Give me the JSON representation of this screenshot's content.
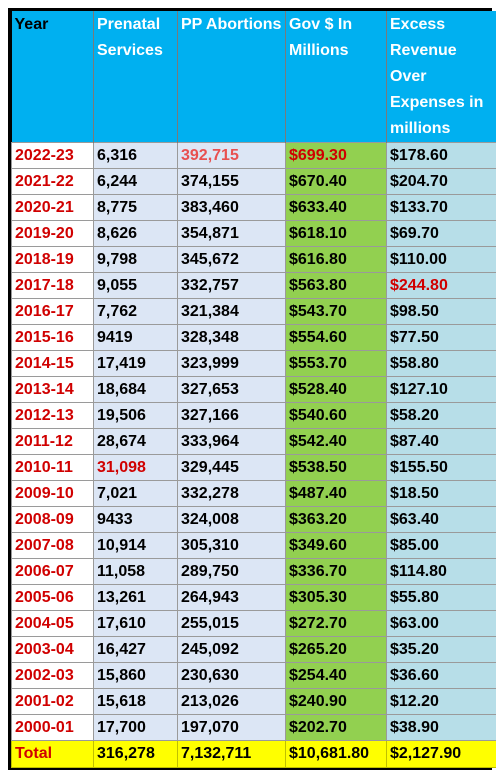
{
  "headers": {
    "year": "Year",
    "prenatal": "Prenatal Services",
    "abortions": "PP Abortions",
    "gov": "Gov $ In Millions",
    "excess": "Excess Revenue Over Expenses in millions"
  },
  "rows": [
    {
      "year": "2022-23",
      "prenatal": "6,316",
      "abortions": "392,715",
      "gov": "$699.30",
      "excess": "$178.60"
    },
    {
      "year": "2021-22",
      "prenatal": "6,244",
      "abortions": "374,155",
      "gov": "$670.40",
      "excess": "$204.70"
    },
    {
      "year": "2020-21",
      "prenatal": "8,775",
      "abortions": "383,460",
      "gov": "$633.40",
      "excess": "$133.70"
    },
    {
      "year": "2019-20",
      "prenatal": "8,626",
      "abortions": "354,871",
      "gov": "$618.10",
      "excess": "$69.70"
    },
    {
      "year": "2018-19",
      "prenatal": "9,798",
      "abortions": "345,672",
      "gov": "$616.80",
      "excess": "$110.00"
    },
    {
      "year": "2017-18",
      "prenatal": "9,055",
      "abortions": "332,757",
      "gov": "$563.80",
      "excess": "$244.80"
    },
    {
      "year": "2016-17",
      "prenatal": "7,762",
      "abortions": "321,384",
      "gov": "$543.70",
      "excess": "$98.50"
    },
    {
      "year": "2015-16",
      "prenatal": "9419",
      "abortions": "328,348",
      "gov": "$554.60",
      "excess": "$77.50"
    },
    {
      "year": "2014-15",
      "prenatal": "17,419",
      "abortions": "323,999",
      "gov": "$553.70",
      "excess": "$58.80"
    },
    {
      "year": "2013-14",
      "prenatal": "18,684",
      "abortions": "327,653",
      "gov": "$528.40",
      "excess": "$127.10"
    },
    {
      "year": "2012-13",
      "prenatal": "19,506",
      "abortions": "327,166",
      "gov": "$540.60",
      "excess": "$58.20"
    },
    {
      "year": "2011-12",
      "prenatal": "28,674",
      "abortions": "333,964",
      "gov": "$542.40",
      "excess": "$87.40"
    },
    {
      "year": "2010-11",
      "prenatal": "31,098",
      "abortions": "329,445",
      "gov": "$538.50",
      "excess": "$155.50"
    },
    {
      "year": "2009-10",
      "prenatal": "7,021",
      "abortions": "332,278",
      "gov": "$487.40",
      "excess": "$18.50"
    },
    {
      "year": "2008-09",
      "prenatal": "9433",
      "abortions": "324,008",
      "gov": "$363.20",
      "excess": "$63.40"
    },
    {
      "year": "2007-08",
      "prenatal": "10,914",
      "abortions": "305,310",
      "gov": "$349.60",
      "excess": "$85.00"
    },
    {
      "year": "2006-07",
      "prenatal": "11,058",
      "abortions": "289,750",
      "gov": "$336.70",
      "excess": "$114.80"
    },
    {
      "year": "2005-06",
      "prenatal": "13,261",
      "abortions": "264,943",
      "gov": "$305.30",
      "excess": "$55.80"
    },
    {
      "year": "2004-05",
      "prenatal": "17,610",
      "abortions": "255,015",
      "gov": "$272.70",
      "excess": "$63.00"
    },
    {
      "year": "2003-04",
      "prenatal": "16,427",
      "abortions": "245,092",
      "gov": "$265.20",
      "excess": "$35.20"
    },
    {
      "year": "2002-03",
      "prenatal": "15,860",
      "abortions": "230,630",
      "gov": "$254.40",
      "excess": "$36.60"
    },
    {
      "year": "2001-02",
      "prenatal": "15,618",
      "abortions": "213,026",
      "gov": "$240.90",
      "excess": "$12.20"
    },
    {
      "year": "2000-01",
      "prenatal": "17,700",
      "abortions": "197,070",
      "gov": "$202.70",
      "excess": "$38.90"
    }
  ],
  "highlights": {
    "text_red": "#d00000",
    "text_pink": "#e85050",
    "header_bg": "#00b0f0",
    "gov_bg": "#92d050",
    "excess_bg": "#b7dee8",
    "total_bg": "#ffff00"
  },
  "total": {
    "label": "Total",
    "prenatal": "316,278",
    "abortions": "7,132,711",
    "gov": "$10,681.80",
    "excess": "$2,127.90"
  }
}
